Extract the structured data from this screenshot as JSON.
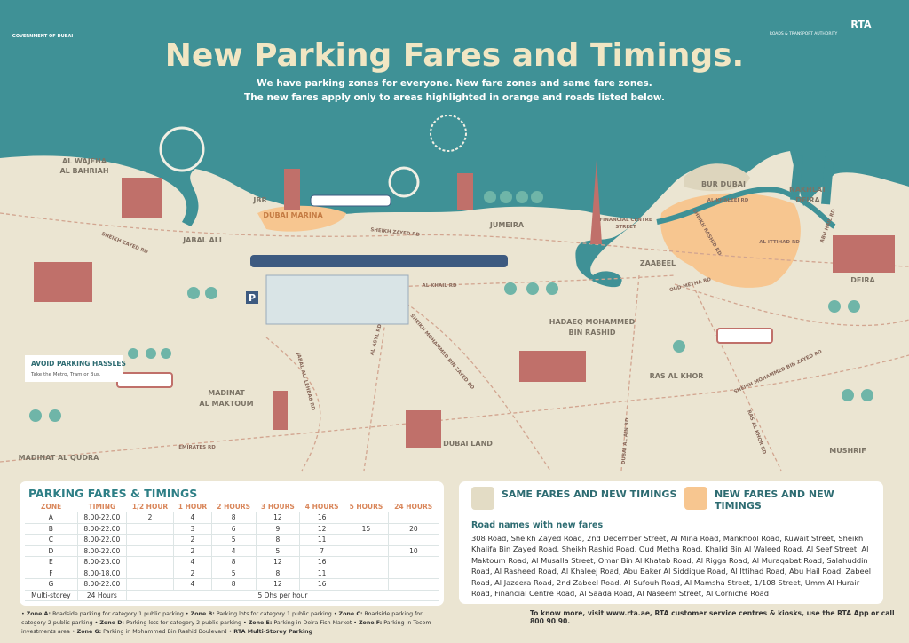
{
  "header": {
    "gov_logo": "GOVERNMENT OF DUBAI",
    "rta_logo": "RTA",
    "rta_name": "ROADS & TRANSPORT AUTHORITY",
    "title": "New Parking Fares and Timings.",
    "subtitle": [
      "We have parking zones for everyone. New fare zones and same fare zones.",
      "The new fares apply only to areas highlighted in orange and roads listed below."
    ]
  },
  "map": {
    "areas": [
      [
        "AL WAJEHA",
        "AL BAHRIAH"
      ],
      [
        "JBR"
      ],
      [
        "DUBAI MARINA"
      ],
      [
        "JABAL ALI"
      ],
      [
        "JUMEIRA"
      ],
      [
        "FINANCIAL CENTRE",
        "STREET"
      ],
      [
        "BUR DUBAI"
      ],
      [
        "ZAABEEL"
      ],
      [
        "NAKHLAT",
        "DEIRA"
      ],
      [
        "DEIRA"
      ],
      [
        "HADAEQ MOHAMMED",
        "BIN RASHID"
      ],
      [
        "RAS AL KHOR"
      ],
      [
        "MADINAT",
        "AL MAKTOUM"
      ],
      [
        "DUBAI LAND"
      ],
      [
        "MADINAT AL QUDRA"
      ],
      [
        "MUSHRIF"
      ]
    ],
    "roads": [
      "SHEIKH ZAYED RD",
      "SHEIKH ZAYED RD",
      "AL KHALEEJ RD",
      "SHEIKH RASHID RD",
      "AL ITTIHAD RD",
      "ABU HAIL RD",
      "OUD METHA RD",
      "AL KHAIL RD",
      "AL ASYL RD",
      "SHEIKH MOHAMMED BIN ZAYED RD",
      "JABAL ALI LEHBAB RD",
      "EMIRATES RD",
      "DUBAI AL AIN RD",
      "RAS AL KHOR RD",
      "SHEIKH MOHAMMED BIN ZAYED RD"
    ],
    "callout": {
      "title": "AVOID PARKING HASSLES",
      "text": "Take the Metro, Tram or Bus."
    },
    "parking_sign": "P"
  },
  "fares_table": {
    "title": "PARKING FARES & TIMINGS",
    "columns": [
      "ZONE",
      "TIMING",
      "1/2 HOUR",
      "1 HOUR",
      "2 HOURS",
      "3 HOURS",
      "4 HOURS",
      "5 HOURS",
      "24 HOURS"
    ],
    "rows": [
      [
        "A",
        "8.00-22.00",
        2,
        4,
        8,
        12,
        16,
        null,
        null
      ],
      [
        "B",
        "8.00-22.00",
        null,
        3,
        6,
        9,
        12,
        15,
        20
      ],
      [
        "C",
        "8.00-22.00",
        null,
        2,
        5,
        8,
        11,
        null,
        null
      ],
      [
        "D",
        "8.00-22.00",
        null,
        2,
        4,
        5,
        7,
        null,
        10
      ],
      [
        "E",
        "8.00-23.00",
        null,
        4,
        8,
        12,
        16,
        null,
        null
      ],
      [
        "F",
        "8.00-18.00",
        null,
        2,
        5,
        8,
        11,
        null,
        null
      ],
      [
        "G",
        "8.00-22.00",
        null,
        4,
        8,
        12,
        16,
        null,
        null
      ]
    ],
    "multi_storey": {
      "zone": "Multi-storey",
      "timing": "24 Hours",
      "fare": "5 Dhs per hour"
    }
  },
  "notes": [
    {
      "zone": "Zone A:",
      "text": "Roadside parking for category 1 public parking"
    },
    {
      "zone": "Zone B:",
      "text": "Parking lots for category 1 public parking"
    },
    {
      "zone": "Zone C:",
      "text": "Roadside parking for category 2 public parking"
    },
    {
      "zone": "Zone D:",
      "text": "Parking lots for category 2 public parking"
    },
    {
      "zone": "Zone E:",
      "text": "Parking in Deira Fish Market"
    },
    {
      "zone": "Zone F:",
      "text": "Parking in Tecom investments area"
    },
    {
      "zone": "Zone G:",
      "text": "Parking in Mohammed Bin Rashid Boulevard"
    }
  ],
  "last_note": "RTA Multi-Storey Parking",
  "legend": {
    "same": "SAME FARES AND NEW TIMINGS",
    "new": "NEW FARES AND NEW TIMINGS"
  },
  "road_names": {
    "title": "Road names with new fares",
    "text": "308 Road, Sheikh Zayed Road, 2nd December Street, Al Mina Road, Mankhool Road, Kuwait Street, Sheikh Khalifa Bin Zayed Road, Sheikh Rashid Road, Oud Metha Road, Khalid Bin Al Waleed Road, Al Seef Street, Al Maktoum Road, Al Musalla Street, Omar Bin Al Khatab Road, Al Rigga Road, Al Muraqabat Road, Salahuddin Road, Al Rasheed Road, Al Khaleej Road, Abu Baker Al Siddique Road, Al Ittihad Road, Abu Hail Road, Zabeel Road, Al Jazeera Road, 2nd Zabeel Road, Al Sufouh Road, Al Mamsha Street, 1/108 Street, Umm Al Hurair Road, Financial Centre Road, Al Saada Road, Al Naseem Street, Al Corniche Road"
  },
  "footer": "To know more, visit www.rta.ae, RTA customer service centres & kiosks, use the RTA App or call 800 90 90."
}
